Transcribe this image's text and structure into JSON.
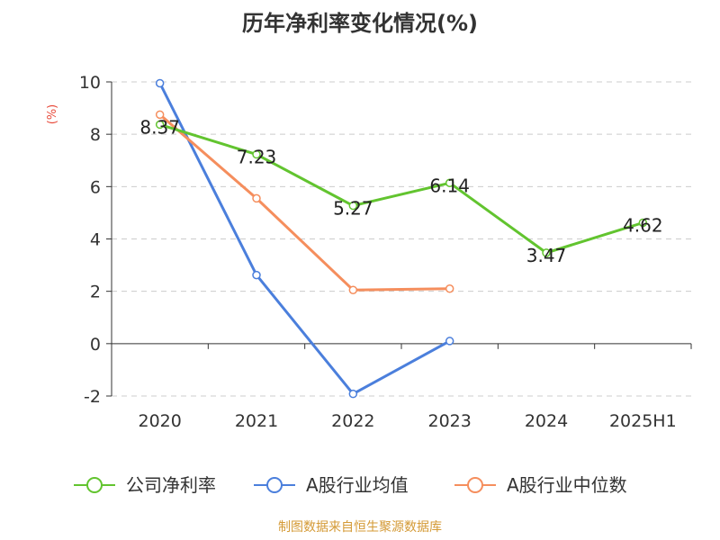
{
  "chart_data": {
    "type": "line",
    "title": "历年净利率变化情况(%)",
    "ylabel": "(%)",
    "xlabel": "",
    "categories": [
      "2020",
      "2021",
      "2022",
      "2023",
      "2024",
      "2025H1"
    ],
    "ylim": [
      -2,
      10
    ],
    "yticks": [
      -2,
      0,
      2,
      4,
      6,
      8,
      10
    ],
    "grid": true,
    "legend_position": "bottom",
    "series": [
      {
        "name": "公司净利率",
        "color": "#62c42f",
        "values": [
          8.37,
          7.23,
          5.27,
          6.14,
          3.47,
          4.62
        ],
        "labeled": true
      },
      {
        "name": "A股行业均值",
        "color": "#4b7fdc",
        "values": [
          9.95,
          2.62,
          -1.92,
          0.1,
          null,
          null
        ],
        "labeled": false
      },
      {
        "name": "A股行业中位数",
        "color": "#f58e5d",
        "values": [
          8.75,
          5.55,
          2.05,
          2.1,
          null,
          null
        ],
        "labeled": false
      }
    ]
  },
  "source_note": "制图数据来自恒生聚源数据库"
}
